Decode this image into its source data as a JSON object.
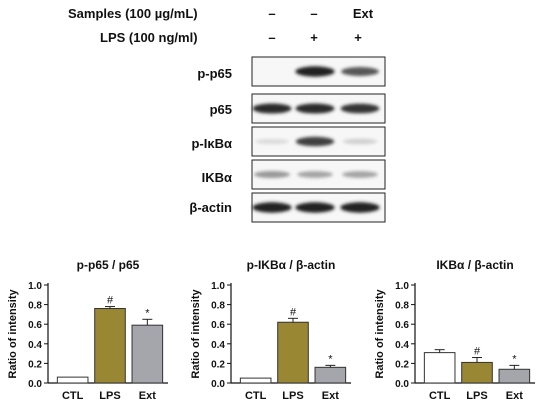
{
  "header": {
    "rows": [
      {
        "label": "Samples (100 µg/mL)",
        "values": [
          "–",
          "–",
          "Ext"
        ]
      },
      {
        "label": "LPS (100 ng/ml)",
        "values": [
          "–",
          "+",
          "+"
        ]
      }
    ]
  },
  "blots": [
    {
      "label": "p-p65",
      "intensity": [
        0.0,
        0.9,
        0.65
      ]
    },
    {
      "label": "p65",
      "intensity": [
        0.85,
        0.85,
        0.8
      ]
    },
    {
      "label": "p-IκBα",
      "intensity": [
        0.05,
        0.75,
        0.1
      ]
    },
    {
      "label": "IKBα",
      "intensity": [
        0.35,
        0.3,
        0.3
      ]
    },
    {
      "label": "β-actin",
      "intensity": [
        0.9,
        0.9,
        0.9
      ]
    }
  ],
  "colors": {
    "ctl": "#ffffff",
    "lps": "#9a8734",
    "ext": "#a5a5ac"
  },
  "chart_data": [
    {
      "type": "bar",
      "title": "p-p65 / p65",
      "ylabel": "Ratio of intensity",
      "categories": [
        "CTL",
        "LPS",
        "Ext"
      ],
      "values": [
        0.06,
        0.76,
        0.59
      ],
      "errors": [
        0.005,
        0.02,
        0.06
      ],
      "annotations": [
        "",
        "#",
        "*"
      ],
      "ylim": [
        0,
        1.0
      ],
      "yticks": [
        "0.0",
        "0.2",
        "0.4",
        "0.6",
        "0.8",
        "1.0"
      ]
    },
    {
      "type": "bar",
      "title": "p-IKBα / β-actin",
      "ylabel": "Ratio of intensity",
      "categories": [
        "CTL",
        "LPS",
        "Ext"
      ],
      "values": [
        0.05,
        0.62,
        0.16
      ],
      "errors": [
        0.005,
        0.04,
        0.02
      ],
      "annotations": [
        "",
        "#",
        "*"
      ],
      "ylim": [
        0,
        1.0
      ],
      "yticks": [
        "0.0",
        "0.2",
        "0.4",
        "0.6",
        "0.8",
        "1.0"
      ]
    },
    {
      "type": "bar",
      "title": "IKBα / β-actin",
      "ylabel": "Ratio of intensity",
      "categories": [
        "CTL",
        "LPS",
        "Ext"
      ],
      "values": [
        0.31,
        0.21,
        0.14
      ],
      "errors": [
        0.03,
        0.05,
        0.04
      ],
      "annotations": [
        "",
        "#",
        "*"
      ],
      "ylim": [
        0,
        1.0
      ],
      "yticks": [
        "0.0",
        "0.2",
        "0.4",
        "0.6",
        "0.8",
        "1.0"
      ]
    }
  ]
}
